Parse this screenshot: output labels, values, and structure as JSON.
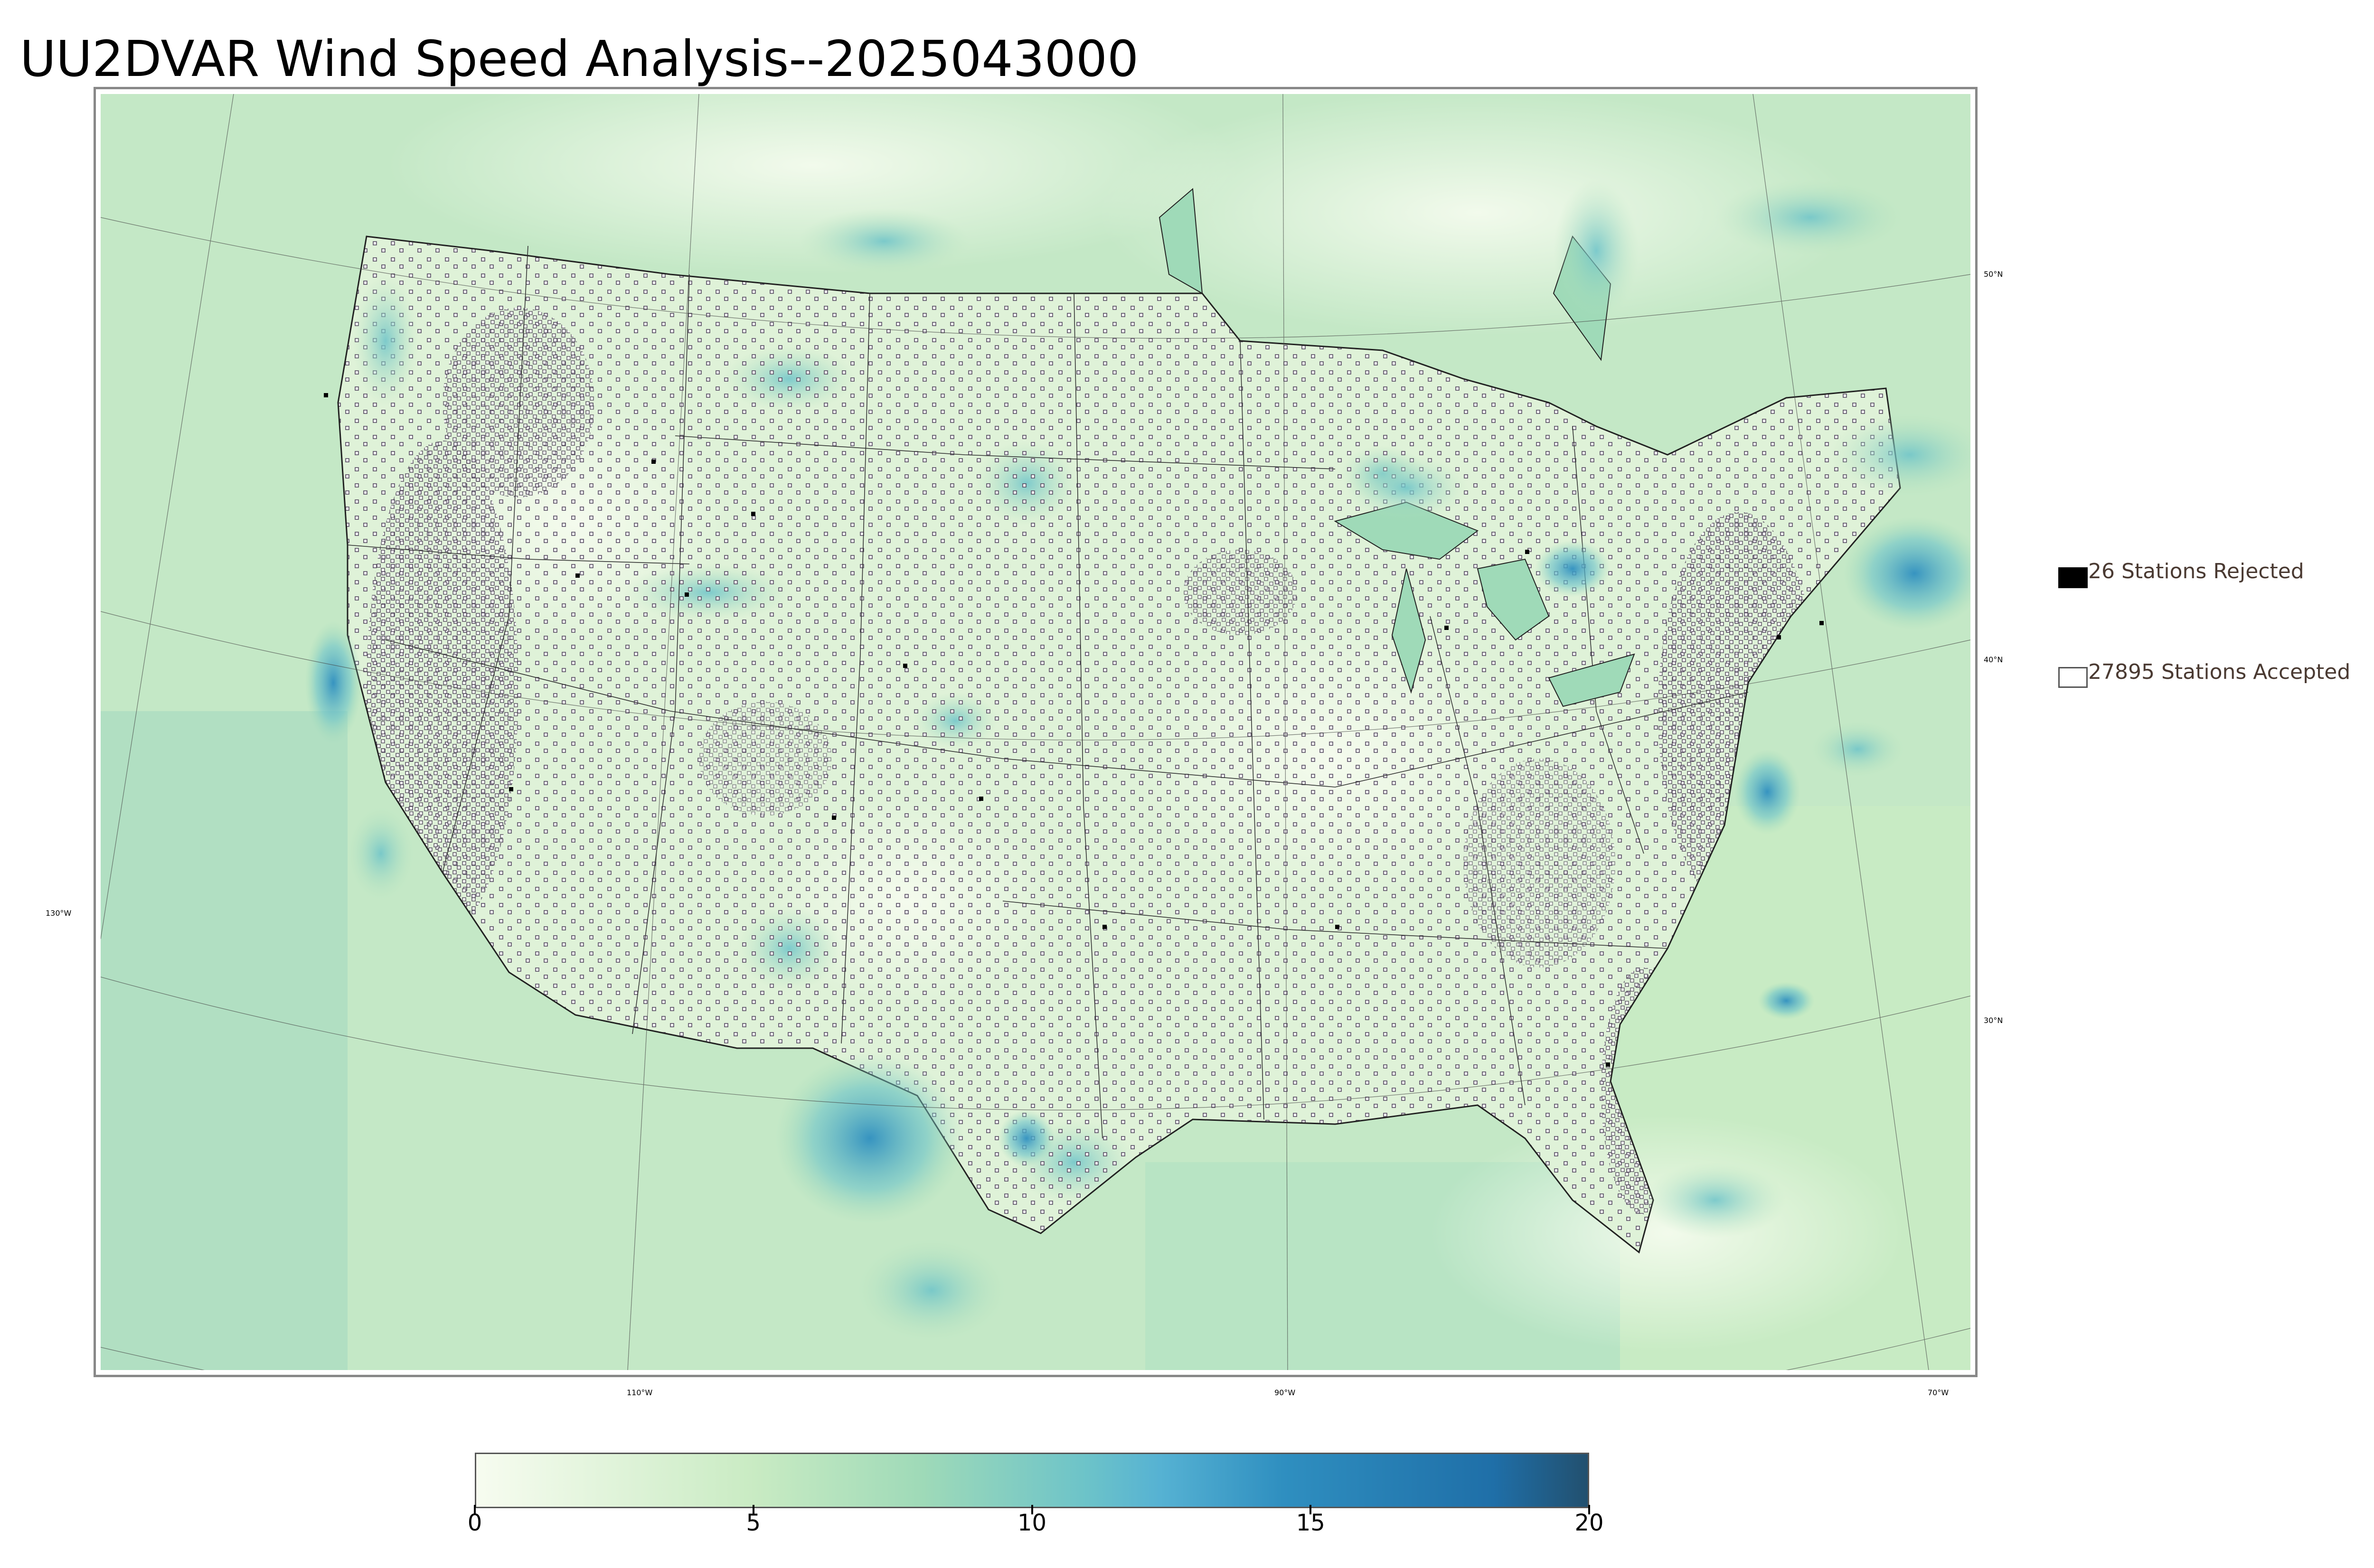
{
  "title": "UU2DVAR Wind Speed Analysis--2025043000",
  "legend": {
    "rejected_label": "26 Stations Rejected",
    "accepted_label": "27895 Stations Accepted"
  },
  "graticule": {
    "lat_labels": [
      "50°N",
      "40°N",
      "30°N"
    ],
    "lon_labels": [
      "130°W",
      "110°W",
      "90°W",
      "70°W"
    ]
  },
  "colorbar": {
    "ticks": [
      "0",
      "5",
      "10",
      "15",
      "20"
    ],
    "min": 0,
    "max": 20,
    "stops": [
      {
        "value": 0,
        "color": "#f7fcf0"
      },
      {
        "value": 5,
        "color": "#c9ebc3"
      },
      {
        "value": 8,
        "color": "#9fdab8"
      },
      {
        "value": 11,
        "color": "#6cc3c9"
      },
      {
        "value": 12.3,
        "color": "#56b2d3"
      },
      {
        "value": 14.5,
        "color": "#2f8fc0"
      },
      {
        "value": 18.3,
        "color": "#1f6fa8"
      },
      {
        "value": 20,
        "color": "#22506f"
      }
    ]
  },
  "colors": {
    "land_base": "#dff2d8",
    "ocean_base": "#c4e8c6",
    "high_wind": "#3d9fcc",
    "station_accepted": "#ffffff",
    "station_rejected": "#000000"
  }
}
